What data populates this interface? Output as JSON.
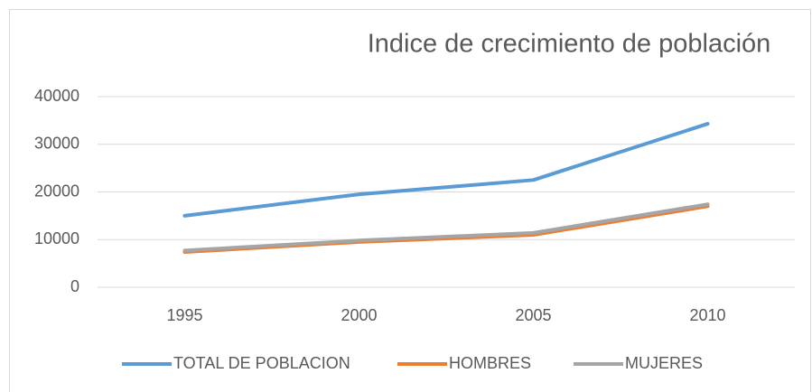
{
  "chart_data": {
    "type": "line",
    "title": "Indice de crecimiento de población",
    "categories": [
      "1995",
      "2000",
      "2005",
      "2010"
    ],
    "series": [
      {
        "name": "TOTAL DE POBLACION",
        "color": "#5b9bd5",
        "values": [
          15000,
          19500,
          22500,
          34300
        ]
      },
      {
        "name": "HOMBRES",
        "color": "#ed7d31",
        "values": [
          7400,
          9500,
          11000,
          17000
        ]
      },
      {
        "name": "MUJERES",
        "color": "#a5a5a5",
        "values": [
          7700,
          9800,
          11400,
          17400
        ]
      }
    ],
    "ylim": [
      0,
      40000
    ],
    "yticks": [
      0,
      10000,
      20000,
      30000,
      40000
    ],
    "grid": true,
    "legend": "bottom"
  }
}
